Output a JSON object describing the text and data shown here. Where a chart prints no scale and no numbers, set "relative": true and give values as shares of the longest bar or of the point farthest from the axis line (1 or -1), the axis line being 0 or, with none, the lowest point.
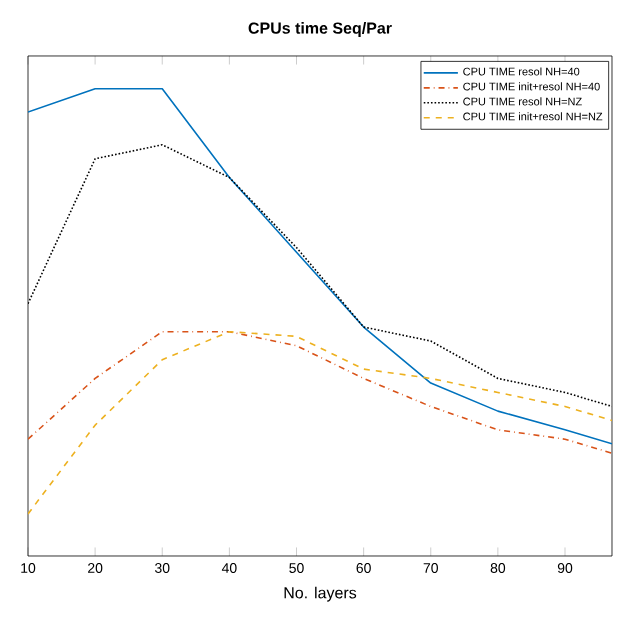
{
  "chart_data": {
    "type": "line",
    "title": "CPUs time Seq/Par",
    "xlabel": "No. layers",
    "relative": true,
    "x": [
      10,
      20,
      30,
      40,
      50,
      60,
      70,
      80,
      90,
      97
    ],
    "xlim": [
      10,
      97
    ],
    "xticks": [
      10,
      20,
      30,
      40,
      50,
      60,
      70,
      80,
      90
    ],
    "series": [
      {
        "name": "CPU TIME resol NH=40",
        "color": "#0072bd",
        "line_style": "solid",
        "values": [
          0.95,
          1,
          1,
          0.81,
          0.65,
          0.49,
          0.37,
          0.31,
          0.27,
          0.24
        ]
      },
      {
        "name": "CPU TIME init+resol NH=40",
        "color": "#d95319",
        "line_style": "dashdot",
        "values": [
          0.25,
          0.38,
          0.48,
          0.48,
          0.45,
          0.38,
          0.32,
          0.27,
          0.25,
          0.22
        ]
      },
      {
        "name": "CPU TIME resol NH=NZ",
        "color": "#000000",
        "line_style": "dotted",
        "values": [
          0.54,
          0.85,
          0.88,
          0.81,
          0.66,
          0.49,
          0.46,
          0.38,
          0.35,
          0.32
        ]
      },
      {
        "name": "CPU TIME init+resol NH=NZ",
        "color": "#edb120",
        "line_style": "dashed",
        "values": [
          0.09,
          0.28,
          0.42,
          0.48,
          0.47,
          0.4,
          0.38,
          0.35,
          0.32,
          0.29
        ]
      }
    ],
    "legend": "top right",
    "marker": "none",
    "grid": false
  }
}
